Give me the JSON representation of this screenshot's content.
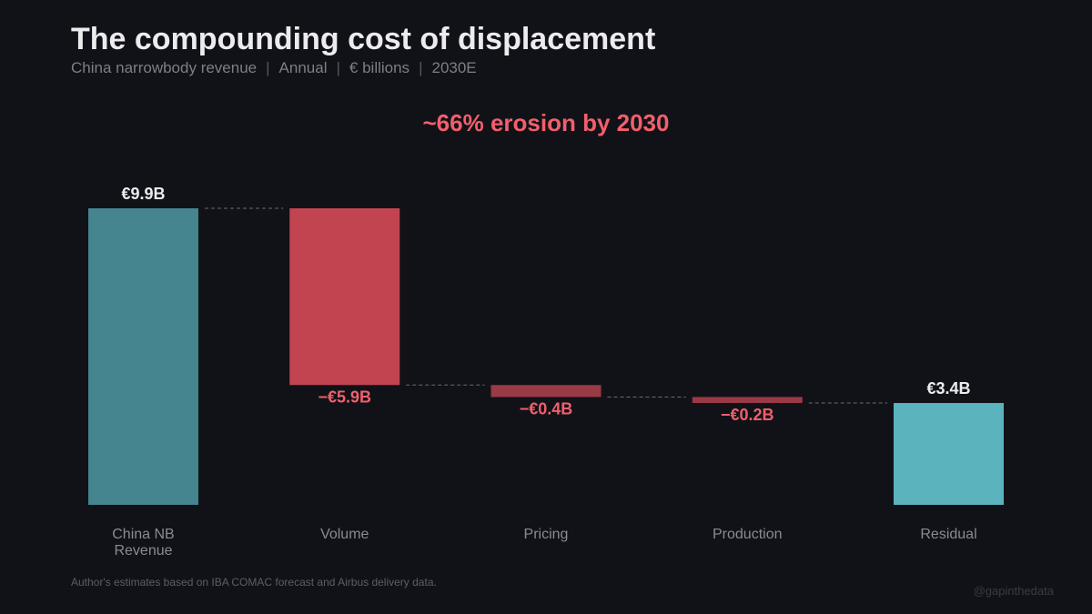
{
  "header": {
    "title": "The compounding cost of displacement",
    "subtitle_parts": [
      "China narrowbody revenue",
      "Annual",
      "€ billions",
      "2030E"
    ]
  },
  "annotation": "~66% erosion by 2030",
  "footer": {
    "source": "Author's estimates based on IBA COMAC forecast and Airbus delivery data.",
    "handle": "@gapinthedata"
  },
  "chart_data": {
    "type": "waterfall",
    "title": "",
    "categories": [
      "China NB\nRevenue",
      "Volume",
      "Pricing",
      "Production",
      "Residual"
    ],
    "values": [
      9.9,
      -5.9,
      -0.4,
      -0.2,
      3.4
    ],
    "kinds": [
      "total",
      "delta",
      "delta",
      "delta",
      "total"
    ],
    "data_labels": [
      "€9.9B",
      "−€5.9B",
      "−€0.4B",
      "−€0.2B",
      "€3.4B"
    ],
    "ylim": [
      0,
      9.9
    ],
    "grid": false,
    "colors": {
      "start": "#44858f",
      "volume": "#c24451",
      "minor_negative": "#9a3a47",
      "residual": "#5ab3bd",
      "negative_label": "#f25f6c",
      "total_label": "#ececef",
      "connector": "#6a6b72",
      "category_label": "#8a8b93"
    }
  }
}
